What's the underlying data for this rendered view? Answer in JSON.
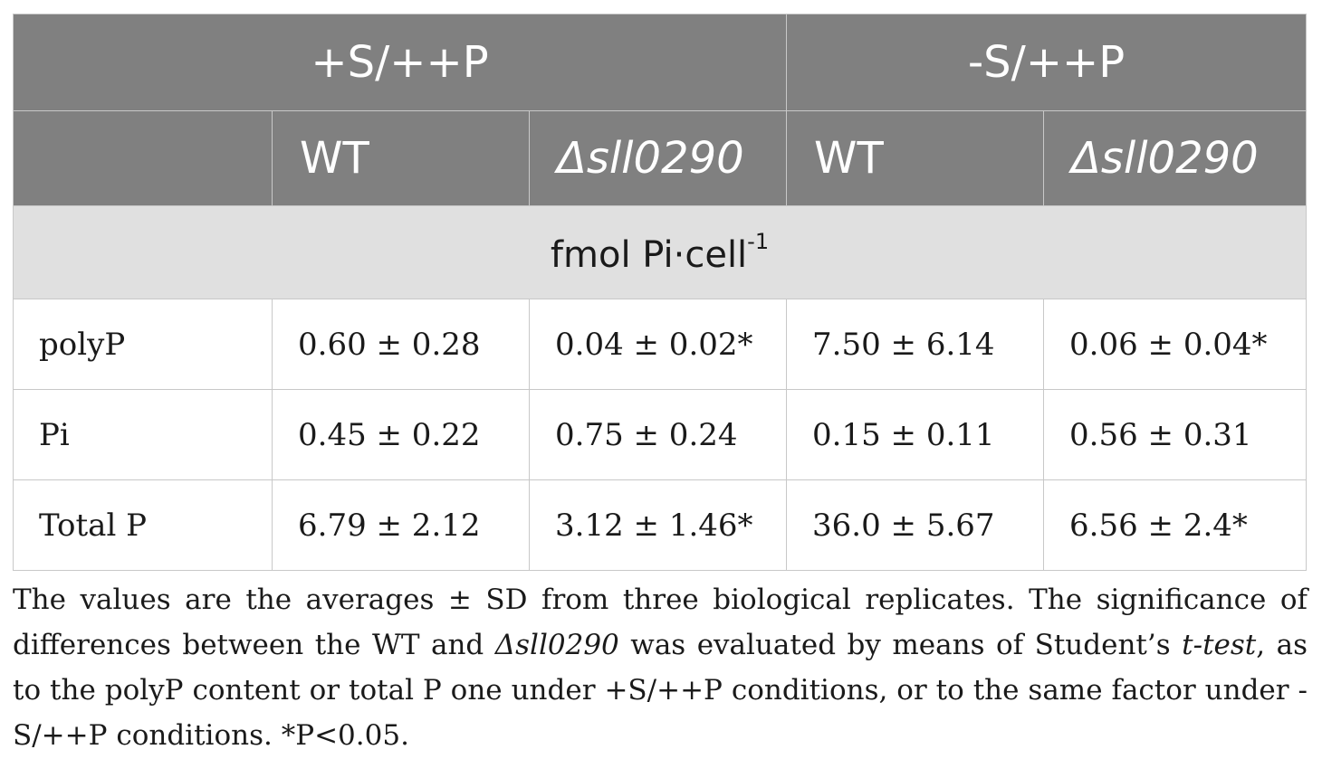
{
  "table": {
    "group_headers": [
      "+S/++P",
      "-S/++P"
    ],
    "sub_headers": [
      "WT",
      "Δsll0290",
      "WT",
      "Δsll0290"
    ],
    "unit_label": "fmol Pi·cell",
    "unit_exponent": "-1",
    "rows": [
      {
        "label": "polyP",
        "cells": [
          "0.60 ± 0.28",
          "0.04 ± 0.02*",
          "7.50 ± 6.14",
          "0.06 ± 0.04*"
        ]
      },
      {
        "label": "Pi",
        "cells": [
          "0.45 ± 0.22",
          "0.75 ± 0.24",
          "0.15 ± 0.11",
          "0.56 ± 0.31"
        ]
      },
      {
        "label": "Total P",
        "cells": [
          "6.79 ± 2.12",
          "3.12 ± 1.46*",
          "36.0 ± 5.67",
          "6.56 ± 2.4*"
        ]
      }
    ]
  },
  "footnote": {
    "part1": "The values are the averages ± SD from three biological replicates. The significance of differences between the WT and ",
    "mutant": "Δsll0290",
    "part2": " was evaluated by means of Student’s ",
    "test": "t-test",
    "part3": ", as to the polyP content or total P one under +S/++P conditions, or to the same factor under -S/++P conditions. *P<0.05."
  }
}
